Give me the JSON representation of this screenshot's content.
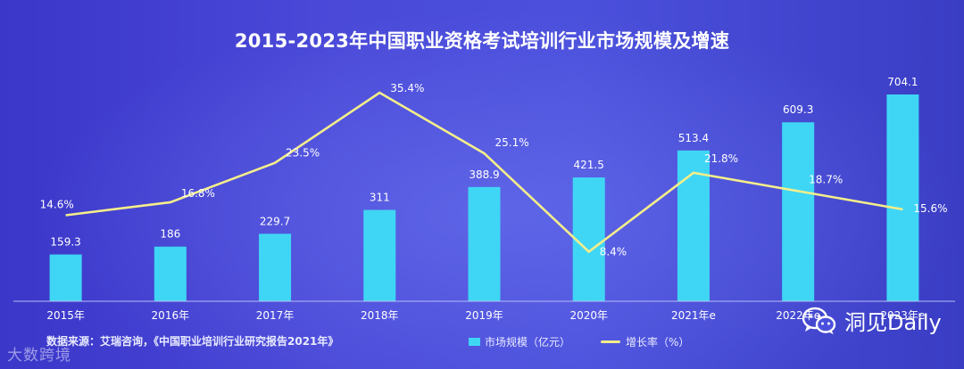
{
  "chart_data": {
    "type": "bar",
    "title": "2015-2023年中国职业资格考试培训行业市场规模及增速",
    "categories": [
      "2015年",
      "2016年",
      "2017年",
      "2018年",
      "2019年",
      "2020年",
      "2021年e",
      "2022年e",
      "2023年e"
    ],
    "series": [
      {
        "name": "市场规模（亿元）",
        "type": "bar",
        "values": [
          159.3,
          186,
          229.7,
          311,
          388.9,
          421.5,
          513.4,
          609.3,
          704.1
        ],
        "labels": [
          "159.3",
          "186",
          "229.7",
          "311",
          "388.9",
          "421.5",
          "513.4",
          "609.3",
          "704.1"
        ]
      },
      {
        "name": "增长率（%）",
        "type": "line",
        "values": [
          14.6,
          16.8,
          23.5,
          35.4,
          25.1,
          8.4,
          21.8,
          18.7,
          15.6
        ],
        "labels": [
          "14.6%",
          "16.8%",
          "23.5%",
          "35.4%",
          "25.1%",
          "8.4%",
          "21.8%",
          "18.7%",
          "15.6%"
        ]
      }
    ],
    "ylim_bar": [
      0,
      750
    ],
    "ylim_line": [
      0,
      40
    ],
    "legend": "bottom-center",
    "grid": false
  },
  "colors": {
    "bar": "#3fd6f5",
    "line": "#f4ee8a",
    "text": "#ffffff",
    "axis": "#b9bcf2"
  },
  "footer": {
    "source": "数据来源：艾瑞咨询，《中国职业培训行业研究报告2021年》",
    "legend_bar": "市场规模（亿元）",
    "legend_line": "增长率（%）"
  },
  "brand": {
    "name": "洞见Daily",
    "icon": "wechat-icon"
  },
  "watermark": "大数跨境"
}
